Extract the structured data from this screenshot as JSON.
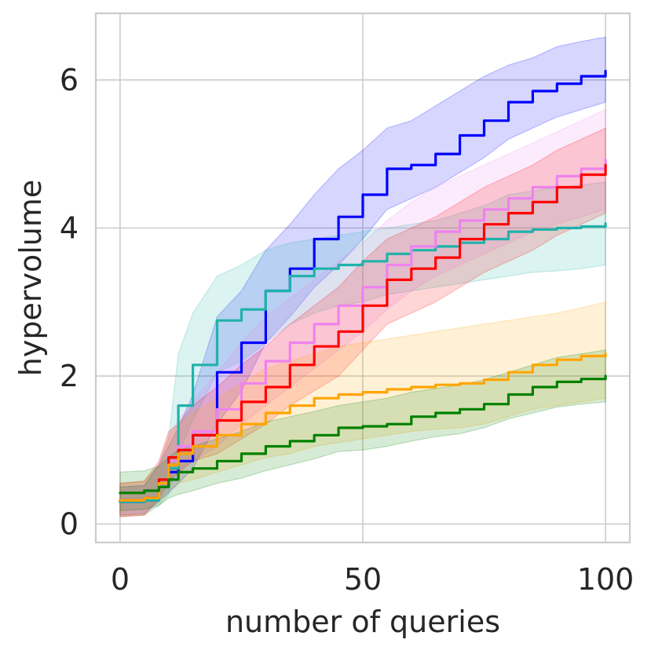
{
  "chart_data": {
    "type": "line",
    "title": "",
    "xlabel": "number of queries",
    "ylabel": "hypervolume",
    "xlim": [
      -5,
      105
    ],
    "ylim": [
      -0.25,
      6.9
    ],
    "xticks": [
      0,
      50,
      100
    ],
    "yticks": [
      0,
      2,
      4,
      6
    ],
    "xtick_labels": [
      "0",
      "50",
      "100"
    ],
    "ytick_labels": [
      "0",
      "2",
      "4",
      "6"
    ],
    "grid": true,
    "x": [
      0,
      5,
      8,
      10,
      12,
      15,
      20,
      25,
      30,
      35,
      40,
      45,
      50,
      55,
      60,
      65,
      70,
      75,
      80,
      85,
      90,
      95,
      100
    ],
    "series": [
      {
        "name": "blue",
        "color": "#0000ff",
        "values": [
          0.3,
          0.32,
          0.55,
          0.7,
          0.85,
          1.2,
          2.05,
          2.45,
          3.15,
          3.45,
          3.85,
          4.15,
          4.45,
          4.8,
          4.85,
          5.0,
          5.25,
          5.45,
          5.7,
          5.85,
          5.95,
          6.05,
          6.12
        ],
        "lower": [
          0.12,
          0.14,
          0.32,
          0.42,
          0.55,
          0.75,
          1.35,
          1.8,
          2.45,
          2.8,
          3.2,
          3.5,
          3.85,
          4.25,
          4.4,
          4.55,
          4.75,
          4.95,
          5.2,
          5.35,
          5.5,
          5.6,
          5.7
        ],
        "upper": [
          0.5,
          0.52,
          0.8,
          1.05,
          1.3,
          1.75,
          2.8,
          3.15,
          3.7,
          4.05,
          4.45,
          4.8,
          5.05,
          5.35,
          5.45,
          5.65,
          5.85,
          6.05,
          6.2,
          6.3,
          6.45,
          6.52,
          6.58
        ]
      },
      {
        "name": "teal",
        "color": "#20b2aa",
        "values": [
          0.3,
          0.32,
          0.5,
          0.75,
          1.6,
          2.15,
          2.75,
          2.9,
          3.15,
          3.35,
          3.45,
          3.5,
          3.55,
          3.65,
          3.7,
          3.75,
          3.8,
          3.85,
          3.95,
          3.98,
          4.0,
          4.02,
          4.06
        ],
        "lower": [
          0.1,
          0.12,
          0.25,
          0.4,
          0.95,
          1.4,
          2.05,
          2.2,
          2.45,
          2.7,
          2.85,
          2.95,
          3.0,
          3.1,
          3.15,
          3.2,
          3.25,
          3.3,
          3.35,
          3.4,
          3.42,
          3.45,
          3.5
        ],
        "upper": [
          0.5,
          0.52,
          0.8,
          1.15,
          2.3,
          2.85,
          3.35,
          3.5,
          3.7,
          3.8,
          3.85,
          3.9,
          3.95,
          4.0,
          4.05,
          4.1,
          4.2,
          4.3,
          4.45,
          4.5,
          4.55,
          4.58,
          4.62
        ]
      },
      {
        "name": "violet",
        "color": "#ee82ee",
        "values": [
          0.32,
          0.35,
          0.55,
          0.85,
          1.05,
          1.25,
          1.55,
          1.9,
          2.2,
          2.45,
          2.7,
          2.95,
          3.2,
          3.5,
          3.75,
          3.95,
          4.1,
          4.25,
          4.4,
          4.55,
          4.7,
          4.8,
          4.92
        ],
        "lower": [
          0.1,
          0.12,
          0.3,
          0.5,
          0.7,
          0.85,
          1.05,
          1.35,
          1.6,
          1.85,
          2.1,
          2.35,
          2.6,
          2.9,
          3.15,
          3.35,
          3.5,
          3.65,
          3.8,
          3.95,
          4.05,
          4.15,
          4.25
        ],
        "upper": [
          0.55,
          0.58,
          0.8,
          1.2,
          1.4,
          1.65,
          2.05,
          2.45,
          2.8,
          3.05,
          3.3,
          3.55,
          3.8,
          4.1,
          4.35,
          4.55,
          4.7,
          4.85,
          5.0,
          5.15,
          5.3,
          5.45,
          5.6
        ]
      },
      {
        "name": "red",
        "color": "#ff0000",
        "values": [
          0.32,
          0.35,
          0.6,
          0.9,
          1.0,
          1.2,
          1.4,
          1.65,
          1.85,
          2.15,
          2.4,
          2.6,
          2.95,
          3.3,
          3.45,
          3.6,
          3.85,
          4.05,
          4.2,
          4.35,
          4.55,
          4.72,
          4.85
        ],
        "lower": [
          0.1,
          0.12,
          0.35,
          0.55,
          0.7,
          0.85,
          0.95,
          1.15,
          1.35,
          1.6,
          1.8,
          2.0,
          2.35,
          2.7,
          2.85,
          3.0,
          3.2,
          3.4,
          3.55,
          3.7,
          3.9,
          4.05,
          4.2
        ],
        "upper": [
          0.55,
          0.58,
          0.85,
          1.25,
          1.35,
          1.6,
          1.85,
          2.15,
          2.4,
          2.7,
          2.95,
          3.2,
          3.55,
          3.85,
          4.0,
          4.15,
          4.35,
          4.55,
          4.7,
          4.85,
          5.05,
          5.2,
          5.35
        ]
      },
      {
        "name": "orange",
        "color": "#ffa500",
        "values": [
          0.32,
          0.35,
          0.55,
          0.8,
          0.95,
          1.05,
          1.2,
          1.35,
          1.5,
          1.6,
          1.7,
          1.75,
          1.78,
          1.82,
          1.85,
          1.88,
          1.9,
          1.95,
          2.05,
          2.15,
          2.22,
          2.27,
          2.3
        ],
        "lower": [
          0.1,
          0.12,
          0.3,
          0.45,
          0.55,
          0.6,
          0.7,
          0.8,
          0.9,
          0.95,
          1.05,
          1.1,
          1.15,
          1.2,
          1.25,
          1.28,
          1.3,
          1.35,
          1.45,
          1.55,
          1.6,
          1.65,
          1.7
        ],
        "upper": [
          0.55,
          0.58,
          0.8,
          1.15,
          1.35,
          1.5,
          1.7,
          1.9,
          2.1,
          2.2,
          2.3,
          2.4,
          2.45,
          2.5,
          2.55,
          2.6,
          2.65,
          2.7,
          2.75,
          2.8,
          2.85,
          2.92,
          3.0
        ]
      },
      {
        "name": "green",
        "color": "#008000",
        "values": [
          0.42,
          0.45,
          0.5,
          0.6,
          0.7,
          0.75,
          0.85,
          0.95,
          1.05,
          1.12,
          1.2,
          1.3,
          1.32,
          1.35,
          1.45,
          1.5,
          1.55,
          1.62,
          1.75,
          1.85,
          1.92,
          1.96,
          2.0
        ],
        "lower": [
          0.18,
          0.2,
          0.25,
          0.35,
          0.4,
          0.45,
          0.55,
          0.62,
          0.72,
          0.8,
          0.88,
          0.98,
          1.0,
          1.05,
          1.12,
          1.18,
          1.22,
          1.3,
          1.42,
          1.5,
          1.58,
          1.62,
          1.65
        ],
        "upper": [
          0.7,
          0.72,
          0.78,
          0.9,
          1.0,
          1.05,
          1.15,
          1.25,
          1.38,
          1.45,
          1.52,
          1.6,
          1.65,
          1.7,
          1.78,
          1.83,
          1.88,
          1.95,
          2.05,
          2.15,
          2.25,
          2.3,
          2.35
        ]
      }
    ]
  }
}
